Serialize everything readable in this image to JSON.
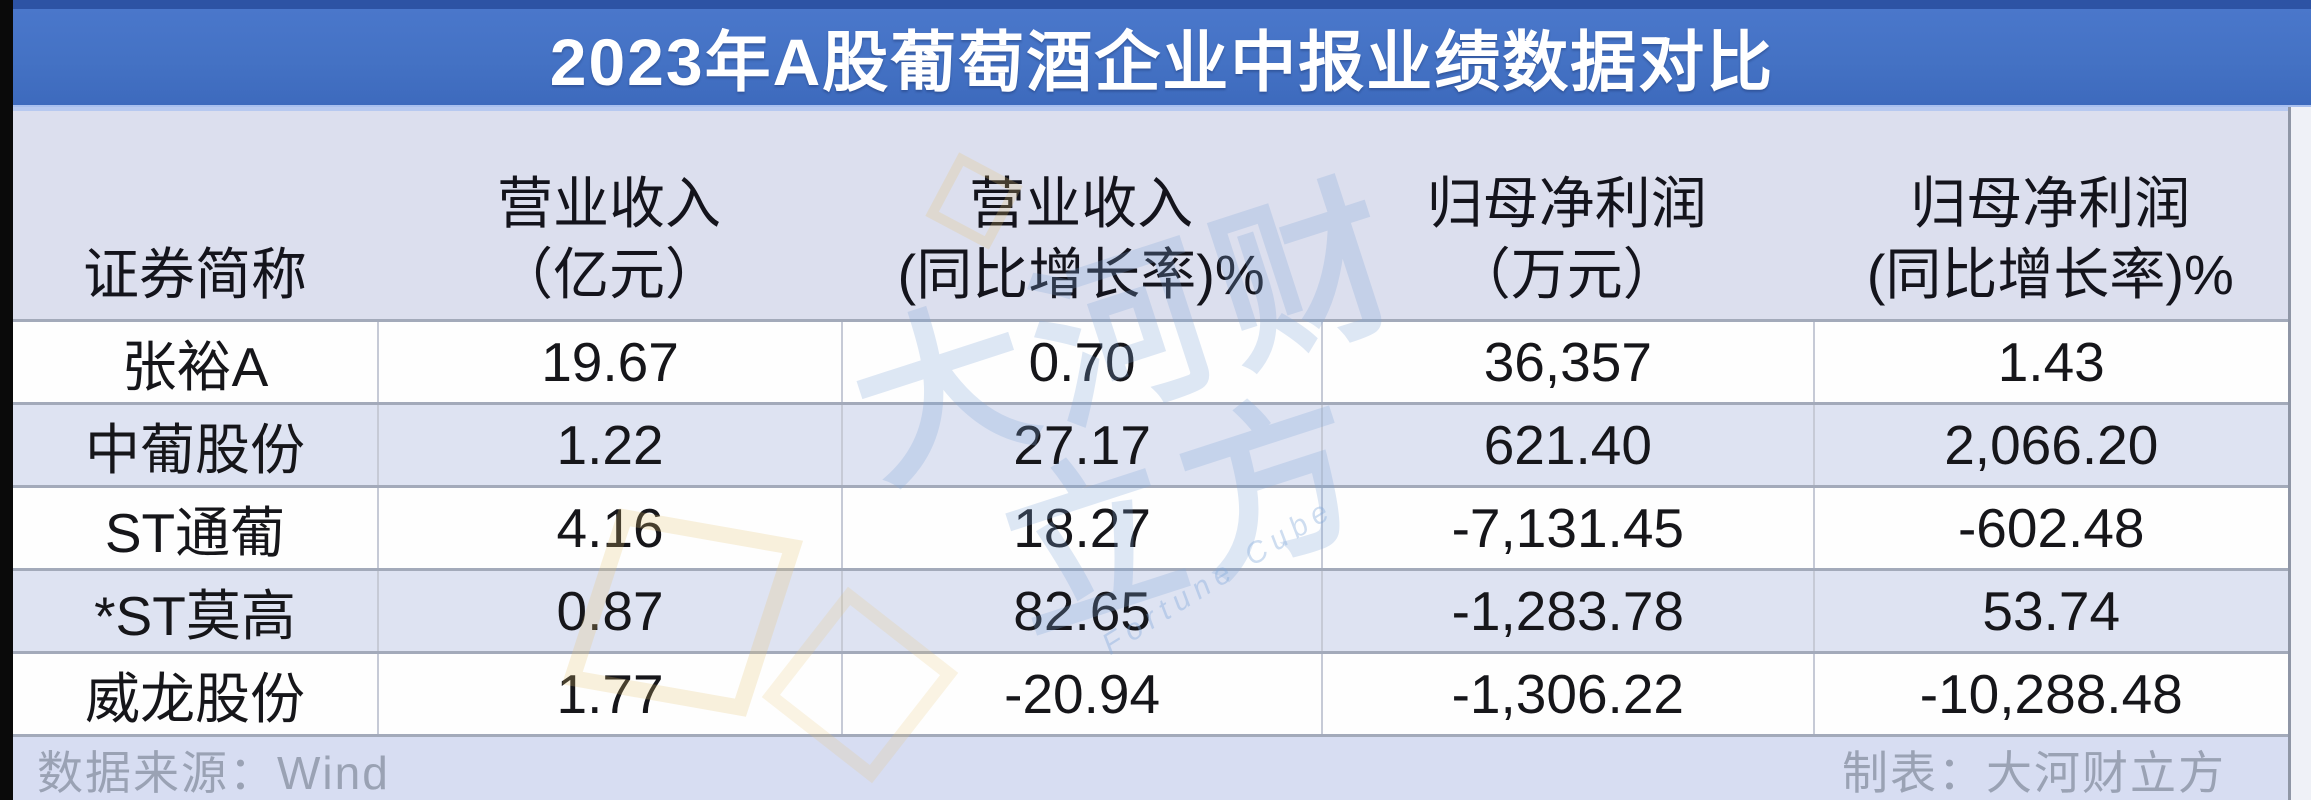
{
  "title": "2023年A股葡萄酒企业中报业绩数据对比",
  "colors": {
    "title_bar_blue": "#4472C4",
    "header_bg": "#DCDFEE",
    "band_row_bg": "#DEE3F2",
    "footer_bg": "#D7DDF2",
    "body_text": "#16161A",
    "footer_text": "#9AA2B4",
    "watermark_blue": "#80A8DA",
    "watermark_gold": "#E8C470"
  },
  "table": {
    "headers": [
      {
        "line1": "证券简称",
        "line2": ""
      },
      {
        "line1": "营业收入",
        "line2": "（亿元）"
      },
      {
        "line1": "营业收入",
        "line2": "(同比增长率)%"
      },
      {
        "line1": "归母净利润",
        "line2": "（万元）"
      },
      {
        "line1": "归母净利润",
        "line2": "(同比增长率)%"
      }
    ],
    "rows": [
      {
        "cells": [
          "张裕A",
          "19.67",
          "0.70",
          "36,357",
          "1.43"
        ]
      },
      {
        "cells": [
          "中葡股份",
          "1.22",
          "27.17",
          "621.40",
          "2,066.20"
        ]
      },
      {
        "cells": [
          "ST通葡",
          "4.16",
          "18.27",
          "-7,131.45",
          "-602.48"
        ]
      },
      {
        "cells": [
          "*ST莫高",
          "0.87",
          "82.65",
          "-1,283.78",
          "53.74"
        ]
      },
      {
        "cells": [
          "威龙股份",
          "1.77",
          "-20.94",
          "-1,306.22",
          "-10,288.48"
        ]
      }
    ]
  },
  "footer": {
    "source": "数据来源：Wind",
    "credit": "制表：大河财立方"
  },
  "watermark": {
    "text": "大河财立方",
    "subtext": "Fortune Cube"
  },
  "chart_data": {
    "type": "table",
    "title": "2023年A股葡萄酒企业中报业绩数据对比",
    "columns": [
      "证券简称",
      "营业收入（亿元）",
      "营业收入(同比增长率)%",
      "归母净利润（万元）",
      "归母净利润(同比增长率)%"
    ],
    "rows": [
      [
        "张裕A",
        19.67,
        0.7,
        36357,
        1.43
      ],
      [
        "中葡股份",
        1.22,
        27.17,
        621.4,
        2066.2
      ],
      [
        "ST通葡",
        4.16,
        18.27,
        -7131.45,
        -602.48
      ],
      [
        "*ST莫高",
        0.87,
        82.65,
        -1283.78,
        53.74
      ],
      [
        "威龙股份",
        1.77,
        -20.94,
        -1306.22,
        -10288.48
      ]
    ],
    "notes": {
      "source": "Wind",
      "credit": "大河财立方"
    }
  }
}
